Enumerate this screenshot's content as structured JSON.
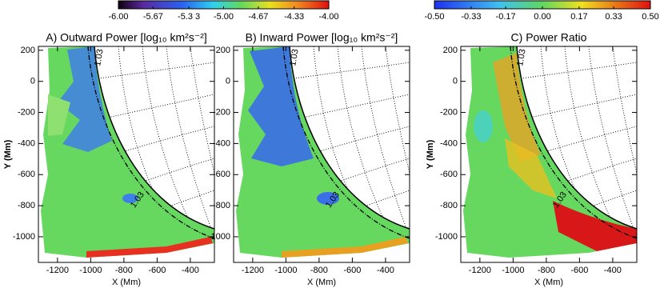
{
  "chart_data": [
    {
      "type": "colorbar",
      "xlim": [
        -6,
        -4
      ],
      "xticks": [
        {
          "value": -6,
          "label": "-6.00"
        },
        {
          "value": -5.67,
          "label": "-5.67"
        },
        {
          "value": -5.33,
          "label": "-5.3 3"
        },
        {
          "value": -5,
          "label": "-5.00"
        },
        {
          "value": -4.67,
          "label": "-4.67"
        },
        {
          "value": -4.33,
          "label": "-4.33"
        },
        {
          "value": -4,
          "label": "-4.00"
        }
      ]
    },
    {
      "type": "colorbar",
      "xlim": [
        -0.5,
        0.5
      ],
      "xticks": [
        {
          "value": -0.5,
          "label": "-0.50"
        },
        {
          "value": -0.33,
          "label": "-0.33"
        },
        {
          "value": -0.17,
          "label": "-0.17"
        },
        {
          "value": 0,
          "label": "0.00"
        },
        {
          "value": 0.17,
          "label": "0.17"
        },
        {
          "value": 0.33,
          "label": "0.33"
        },
        {
          "value": 0.5,
          "label": "0.50"
        }
      ]
    },
    {
      "type": "image",
      "title": "A) Outward Power [log₁₀ km²s⁻²]",
      "xlabel": "X (Mm)",
      "ylabel": "Y (Mm)",
      "xlim": [
        -1315,
        -255
      ],
      "ylim": [
        -1165,
        225
      ],
      "xticks": [
        -1200,
        -1000,
        -800,
        -600,
        -400
      ],
      "yticks": [
        200,
        0,
        -200,
        -400,
        -600,
        -800,
        -1000
      ],
      "annotations": [
        "1.03",
        "1.03"
      ]
    },
    {
      "type": "image",
      "title": "B) Inward Power [log₁₀ km²s⁻²]",
      "xlabel": "X (Mm)",
      "xlim": [
        -1315,
        -255
      ],
      "ylim": [
        -1165,
        225
      ],
      "xticks": [
        -1200,
        -1000,
        -800,
        -600,
        -400
      ],
      "yticks": [
        200,
        0,
        -200,
        -400,
        -600,
        -800,
        -1000
      ],
      "annotations": [
        "1.03",
        "1.03"
      ]
    },
    {
      "type": "image",
      "title": "C) Power Ratio",
      "xlabel": "X (Mm)",
      "ylabel": "Y (Mm)",
      "xlim": [
        -1315,
        -255
      ],
      "ylim": [
        -1165,
        225
      ],
      "xticks": [
        -1200,
        -1000,
        -800,
        -600,
        -400
      ],
      "yticks": [
        200,
        0,
        -200,
        -400,
        -600,
        -800,
        -1000
      ],
      "annotations": [
        "1.03",
        "1.03"
      ]
    }
  ]
}
